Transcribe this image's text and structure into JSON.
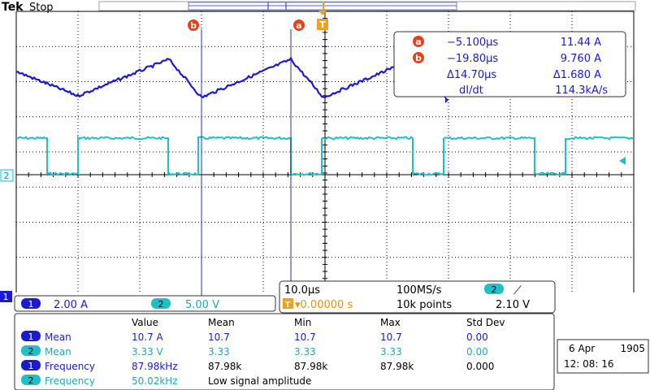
{
  "header": {
    "brand": "Tek",
    "status": "Stop"
  },
  "cursors": {
    "a_label": "a",
    "b_label": "b",
    "trigger_label": "T"
  },
  "readout": {
    "a_time": "−5.100µs",
    "a_value": "11.44 A",
    "b_time": "−19.80µs",
    "b_value": "9.760 A",
    "delta_time": "Δ14.70µs",
    "delta_value": "Δ1.680 A",
    "rate_label": "dI/dt",
    "rate_value": "114.3kA/s"
  },
  "channel_markers": {
    "ch1": "1",
    "ch2": "2"
  },
  "channels": {
    "ch1_num": "1",
    "ch1_scale": "2.00 A",
    "ch2_num": "2",
    "ch2_scale": "5.00 V"
  },
  "timebase": {
    "horizontal": "10.0µs",
    "sample_rate": "100MS/s",
    "trigger_delay": "▾0.00000 s",
    "record_length": "10k points",
    "trigger_channel": "2",
    "trigger_slope": "⟋",
    "trigger_level": "2.10 V"
  },
  "measurements": {
    "headers": [
      "Value",
      "Mean",
      "Min",
      "Max",
      "Std Dev"
    ],
    "rows": [
      {
        "ch": "1",
        "name": "Mean",
        "value": "10.7 A",
        "mean": "10.7",
        "min": "10.7",
        "max": "10.7",
        "std": "0.00"
      },
      {
        "ch": "2",
        "name": "Mean",
        "value": "3.33 V",
        "mean": "3.33",
        "min": "3.33",
        "max": "3.33",
        "std": "0.00"
      },
      {
        "ch": "1",
        "name": "Frequency",
        "value": "87.98kHz",
        "mean": "87.98k",
        "min": "87.98k",
        "max": "87.98k",
        "std": "0.000"
      },
      {
        "ch": "2",
        "name": "Frequency",
        "value": "50.02kHz",
        "note": "Low signal amplitude"
      }
    ]
  },
  "datetime": {
    "date": "6 Apr",
    "year": "1905",
    "time": "12: 08: 16"
  },
  "colors": {
    "ch1": "#1a1ad0",
    "ch2": "#20c0c8",
    "cursor": "#e8401a",
    "trigger": "#f0a020"
  }
}
